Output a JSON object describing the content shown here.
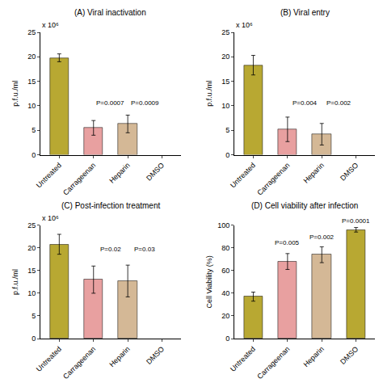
{
  "chart_data": [
    {
      "type": "bar",
      "title": "(A) Viral inactivation",
      "ylabel": "p.f.u./ml",
      "ylabel_note": "x 10⁶",
      "categories": [
        "Untreated",
        "Carrageenan",
        "Heparin",
        "DMSO"
      ],
      "values": [
        19.8,
        5.5,
        6.3,
        null
      ],
      "errors": [
        0.8,
        1.5,
        1.8,
        null
      ],
      "colors": [
        "#b8a832",
        "#e8a0a0",
        "#d4b896",
        null
      ],
      "annotations": [
        {
          "text": "P=0.0007",
          "x": 1.5,
          "y": 9.5
        },
        {
          "text": "P=0.0009",
          "x": 2.5,
          "y": 9.5
        }
      ],
      "ylim": [
        0,
        25
      ],
      "yticks": [
        0,
        5,
        10,
        15,
        20,
        25
      ],
      "grid": false
    },
    {
      "type": "bar",
      "title": "(B) Viral entry",
      "ylabel": "p.f.u./ml",
      "ylabel_note": "x 10⁶",
      "categories": [
        "Untreated",
        "Carrageenan",
        "Heparin",
        "DMSO"
      ],
      "values": [
        18.3,
        5.2,
        4.2,
        null
      ],
      "errors": [
        2.0,
        2.5,
        2.2,
        null
      ],
      "colors": [
        "#b8a832",
        "#e8a0a0",
        "#d4b896",
        null
      ],
      "annotations": [
        {
          "text": "P=0.004",
          "x": 1.5,
          "y": 9.5
        },
        {
          "text": "P=0.002",
          "x": 2.5,
          "y": 9.5
        }
      ],
      "ylim": [
        0,
        25
      ],
      "yticks": [
        0,
        5,
        10,
        15,
        20,
        25
      ],
      "grid": false
    },
    {
      "type": "bar",
      "title": "(C) Post-infection treatment",
      "ylabel": "p.f.u./ml",
      "ylabel_note": "x 10⁶",
      "categories": [
        "Untreated",
        "Carrageenan",
        "Heparin",
        "DMSO"
      ],
      "values": [
        20.8,
        13.0,
        12.7,
        null
      ],
      "errors": [
        2.2,
        3.0,
        3.5,
        null
      ],
      "colors": [
        "#b8a832",
        "#e8a0a0",
        "#d4b896",
        null
      ],
      "annotations": [
        {
          "text": "P=0.02",
          "x": 1.5,
          "y": 18.5
        },
        {
          "text": "P=0.03",
          "x": 2.5,
          "y": 18.5
        }
      ],
      "ylim": [
        0,
        25
      ],
      "yticks": [
        0,
        5,
        10,
        15,
        20,
        25
      ],
      "grid": false
    },
    {
      "type": "bar",
      "title": "(D) Cell viability after infection",
      "ylabel": "Cell Viability (%)",
      "categories": [
        "Untreated",
        "Carrageenan",
        "Heparin",
        "DMSO"
      ],
      "values": [
        37,
        68,
        74,
        96
      ],
      "errors": [
        4,
        7,
        7,
        2
      ],
      "colors": [
        "#b8a832",
        "#e8a0a0",
        "#d4b896",
        "#b8a832"
      ],
      "annotations": [
        {
          "text": "P=0.005",
          "x": 1,
          "y": 80
        },
        {
          "text": "P=0.002",
          "x": 2,
          "y": 85
        },
        {
          "text": "P=0.0001",
          "x": 3,
          "y": 99
        }
      ],
      "ylim": [
        0,
        100
      ],
      "yticks": [
        0,
        20,
        40,
        60,
        80,
        100
      ],
      "grid": false
    }
  ]
}
